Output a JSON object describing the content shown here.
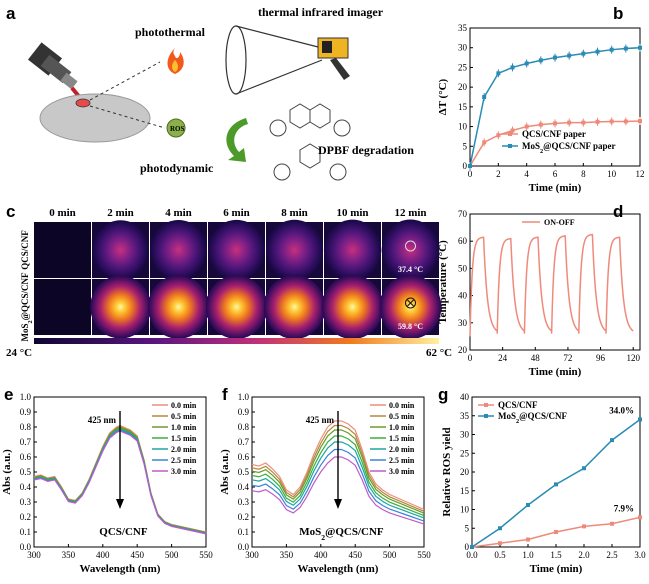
{
  "panels": {
    "a": {
      "label": "a",
      "photothermal": "photothermal",
      "imager": "thermal infrared imager",
      "ros": "ROS",
      "photodynamic": "photodynamic",
      "dpbf": "DPBF degradation"
    },
    "b": {
      "label": "b"
    },
    "c": {
      "label": "c",
      "times": [
        "0 min",
        "2 min",
        "4 min",
        "6 min",
        "8 min",
        "10 min",
        "12 min"
      ],
      "rows": [
        {
          "name": "QCS/CNF",
          "intensity": [
            0,
            0.4,
            0.45,
            0.48,
            0.5,
            0.52,
            0.55
          ],
          "readout": "37.4 °C"
        },
        {
          "name": "MoS2@QCS/CNF",
          "intensity": [
            0,
            0.8,
            0.86,
            0.88,
            0.9,
            0.9,
            0.92
          ],
          "readout": "59.8 °C"
        }
      ],
      "scale_min": "24 °C",
      "scale_max": "62 °C"
    },
    "d": {
      "label": "d"
    },
    "e": {
      "label": "e"
    },
    "f": {
      "label": "f"
    },
    "g": {
      "label": "g"
    }
  },
  "chart_data": [
    {
      "id": "b",
      "type": "line",
      "xlabel": "Time (min)",
      "ylabel": "ΔT (°C)",
      "xlim": [
        0,
        12
      ],
      "ylim": [
        0,
        35
      ],
      "xticks": [
        0,
        2,
        4,
        6,
        8,
        10,
        12
      ],
      "yticks": [
        0,
        5,
        10,
        15,
        20,
        25,
        30,
        35
      ],
      "x": [
        0,
        1,
        2,
        3,
        4,
        5,
        6,
        7,
        8,
        9,
        10,
        11,
        12
      ],
      "series": [
        {
          "name": "QCS/CNF paper",
          "color": "#ef8a7a",
          "values": [
            0,
            6,
            7.8,
            9,
            10,
            10.5,
            10.8,
            11,
            11,
            11.2,
            11.3,
            11.3,
            11.4
          ]
        },
        {
          "name": "MoS2@QCS/CNF paper",
          "color": "#2a8bb4",
          "values": [
            0,
            17.5,
            23.5,
            25,
            26,
            26.8,
            27.5,
            28,
            28.5,
            29,
            29.5,
            29.8,
            30
          ]
        }
      ]
    },
    {
      "id": "d",
      "type": "line",
      "xlabel": "Time (min)",
      "ylabel": "Temperature (°C)",
      "xlim": [
        0,
        125
      ],
      "ylim": [
        20,
        70
      ],
      "xticks": [
        0,
        24,
        48,
        72,
        96,
        120
      ],
      "yticks": [
        20,
        30,
        40,
        50,
        60,
        70
      ],
      "legend": "ON-OFF",
      "color": "#ef8a7a",
      "cycles": [
        {
          "start": 0,
          "peak": 61.5
        },
        {
          "start": 20,
          "peak": 61
        },
        {
          "start": 40,
          "peak": 61.5
        },
        {
          "start": 60,
          "peak": 62
        },
        {
          "start": 80,
          "peak": 62.5
        },
        {
          "start": 100,
          "peak": 61.5
        }
      ],
      "baseline_start": 25,
      "baseline": 26
    },
    {
      "id": "e",
      "type": "line",
      "xlabel": "Wavelength (nm)",
      "ylabel": "Abs (a.u.)",
      "xlim": [
        300,
        550
      ],
      "ylim": [
        0,
        1.0
      ],
      "xticks": [
        300,
        350,
        400,
        450,
        500,
        550
      ],
      "yticks": [
        0.0,
        0.1,
        0.2,
        0.3,
        0.4,
        0.5,
        0.6,
        0.7,
        0.8,
        0.9,
        1.0
      ],
      "title": "QCS/CNF",
      "annotation": "425 nm",
      "wavelengths": [
        300,
        310,
        320,
        330,
        340,
        350,
        360,
        370,
        380,
        390,
        400,
        410,
        420,
        425,
        430,
        440,
        450,
        460,
        470,
        480,
        490,
        500,
        510,
        520,
        530,
        540,
        550
      ],
      "base_curve": [
        0.47,
        0.48,
        0.46,
        0.47,
        0.4,
        0.32,
        0.31,
        0.36,
        0.45,
        0.56,
        0.67,
        0.76,
        0.8,
        0.81,
        0.8,
        0.78,
        0.74,
        0.58,
        0.36,
        0.22,
        0.17,
        0.15,
        0.14,
        0.13,
        0.12,
        0.11,
        0.1
      ],
      "series": [
        {
          "name": "0.0 min",
          "color": "#f08c7c",
          "delta": 0.0
        },
        {
          "name": "0.5 min",
          "color": "#b08a3c",
          "delta": -0.006
        },
        {
          "name": "1.0 min",
          "color": "#6c9a2a",
          "delta": -0.012
        },
        {
          "name": "1.5 min",
          "color": "#3cae3c",
          "delta": -0.018
        },
        {
          "name": "2.0 min",
          "color": "#1aa7a0",
          "delta": -0.024
        },
        {
          "name": "2.5 min",
          "color": "#3a82d8",
          "delta": -0.03
        },
        {
          "name": "3.0 min",
          "color": "#c05acb",
          "delta": -0.036
        }
      ]
    },
    {
      "id": "f",
      "type": "line",
      "xlabel": "Wavelength (nm)",
      "ylabel": "Abs (a.u.)",
      "xlim": [
        300,
        550
      ],
      "ylim": [
        0.0,
        1.0
      ],
      "xticks": [
        300,
        350,
        400,
        450,
        500,
        550
      ],
      "yticks": [
        0.0,
        0.1,
        0.2,
        0.3,
        0.4,
        0.5,
        0.6,
        0.7,
        0.8,
        0.9,
        1.0
      ],
      "title": "MoS2@QCS/CNF",
      "annotation": "425 nm",
      "wavelengths": [
        300,
        310,
        320,
        330,
        340,
        350,
        360,
        370,
        380,
        390,
        400,
        410,
        420,
        425,
        430,
        440,
        450,
        460,
        470,
        480,
        490,
        500,
        510,
        520,
        530,
        540,
        550
      ],
      "base_curve": [
        0.55,
        0.54,
        0.56,
        0.52,
        0.47,
        0.38,
        0.35,
        0.4,
        0.5,
        0.62,
        0.72,
        0.8,
        0.84,
        0.84,
        0.84,
        0.82,
        0.78,
        0.65,
        0.5,
        0.42,
        0.38,
        0.35,
        0.33,
        0.31,
        0.29,
        0.27,
        0.25
      ],
      "series": [
        {
          "name": "0.0 min",
          "color": "#f08c7c",
          "delta": 0.0
        },
        {
          "name": "0.5 min",
          "color": "#b08a3c",
          "delta": -0.03
        },
        {
          "name": "1.0 min",
          "color": "#6c9a2a",
          "delta": -0.06
        },
        {
          "name": "1.5 min",
          "color": "#3cae3c",
          "delta": -0.1
        },
        {
          "name": "2.0 min",
          "color": "#1aa7a0",
          "delta": -0.14
        },
        {
          "name": "2.5 min",
          "color": "#3a82d8",
          "delta": -0.19
        },
        {
          "name": "3.0 min",
          "color": "#c05acb",
          "delta": -0.24
        }
      ]
    },
    {
      "id": "g",
      "type": "line",
      "xlabel": "Time (min)",
      "ylabel": "Relative ROS yield",
      "xlim": [
        0,
        3
      ],
      "ylim": [
        0,
        40
      ],
      "xticks": [
        0.0,
        0.5,
        1.0,
        1.5,
        2.0,
        2.5,
        3.0
      ],
      "yticks": [
        0,
        5,
        10,
        15,
        20,
        25,
        30,
        35,
        40
      ],
      "x": [
        0,
        0.5,
        1.0,
        1.5,
        2.0,
        2.5,
        3.0
      ],
      "series": [
        {
          "name": "QCS/CNF",
          "color": "#ef8a7a",
          "values": [
            0,
            1.0,
            2.0,
            4.0,
            5.5,
            6.2,
            7.9
          ],
          "end_label": "7.9%"
        },
        {
          "name": "MoS2@QCS/CNF",
          "color": "#2a8bb4",
          "values": [
            0,
            5,
            11.2,
            16.7,
            21,
            28.5,
            34.0
          ],
          "end_label": "34.0%"
        }
      ]
    }
  ]
}
